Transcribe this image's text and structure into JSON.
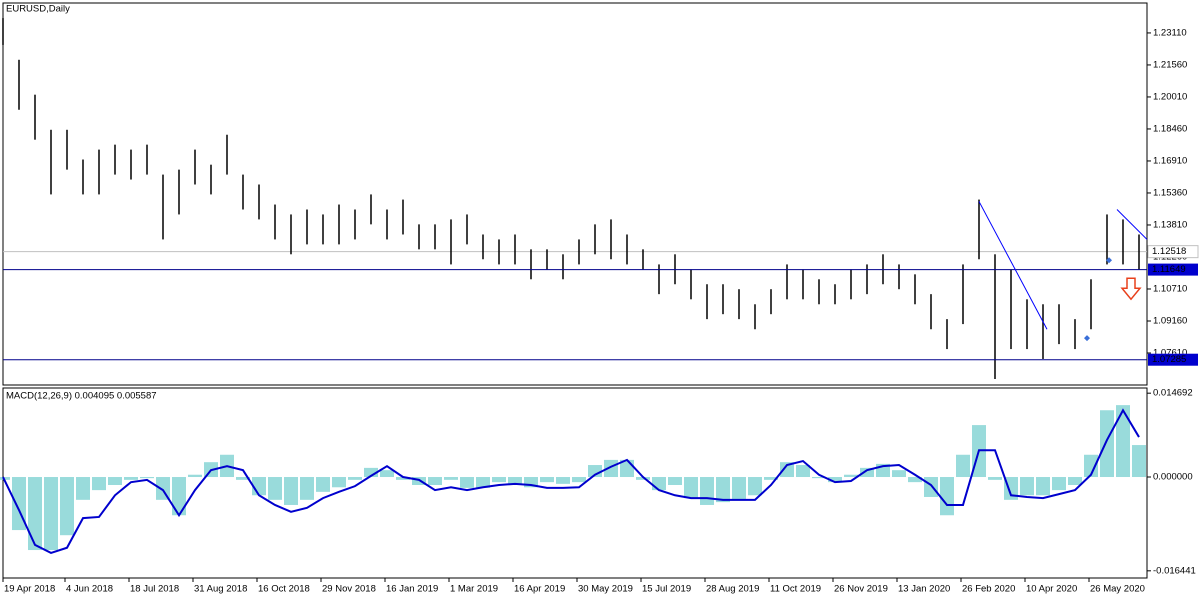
{
  "chart_data": [
    {
      "type": "hilo",
      "title": "EURUSD,Daily",
      "color": "#000000",
      "xlim": [
        0,
        572
      ],
      "x": [
        0,
        8,
        16,
        24,
        32,
        40,
        48,
        56,
        64,
        72,
        80,
        88,
        96,
        104,
        112,
        120,
        128,
        136,
        144,
        152,
        160,
        168,
        176,
        184,
        192,
        200,
        208,
        216,
        224,
        232,
        240,
        248,
        256,
        264,
        272,
        280,
        288,
        296,
        304,
        312,
        320,
        328,
        336,
        344,
        352,
        360,
        368,
        376,
        384,
        392,
        400,
        408,
        416,
        424,
        432,
        440,
        448,
        456,
        464,
        472,
        480,
        488,
        496,
        504,
        512,
        520,
        528,
        536,
        544,
        552,
        560,
        568
      ],
      "high": [
        1.2383,
        1.2181,
        1.2012,
        1.1842,
        1.1842,
        1.1698,
        1.1746,
        1.177,
        1.1746,
        1.177,
        1.1625,
        1.1649,
        1.1746,
        1.1673,
        1.1818,
        1.1625,
        1.1577,
        1.148,
        1.1432,
        1.1456,
        1.1432,
        1.148,
        1.1456,
        1.1529,
        1.1456,
        1.1504,
        1.1384,
        1.1384,
        1.1408,
        1.1432,
        1.1335,
        1.1311,
        1.1335,
        1.1263,
        1.1263,
        1.1239,
        1.1311,
        1.1384,
        1.1408,
        1.1335,
        1.1263,
        1.119,
        1.1239,
        1.1166,
        1.1094,
        1.1094,
        1.107,
        1.0997,
        1.107,
        1.119,
        1.1166,
        1.1118,
        1.1094,
        1.1166,
        1.119,
        1.1239,
        1.119,
        1.1142,
        1.1046,
        1.0925,
        1.119,
        1.1504,
        1.1239,
        1.1166,
        1.1021,
        1.0997,
        1.0997,
        1.0925,
        1.1118,
        1.1432,
        1.1408,
        1.1335
      ],
      "low": [
        1.2253,
        1.1939,
        1.1794,
        1.1529,
        1.1649,
        1.1529,
        1.1529,
        1.1625,
        1.1601,
        1.1625,
        1.1311,
        1.1432,
        1.1577,
        1.1529,
        1.1625,
        1.1456,
        1.1408,
        1.1311,
        1.1239,
        1.1287,
        1.1287,
        1.1287,
        1.1311,
        1.1384,
        1.1311,
        1.1335,
        1.1263,
        1.1263,
        1.119,
        1.1287,
        1.1215,
        1.119,
        1.119,
        1.1118,
        1.1166,
        1.1118,
        1.119,
        1.1239,
        1.1215,
        1.119,
        1.1166,
        1.1046,
        1.1094,
        1.1021,
        1.0925,
        1.0949,
        1.0925,
        1.0876,
        1.0949,
        1.1021,
        1.1021,
        1.0997,
        1.0997,
        1.1021,
        1.1046,
        1.1094,
        1.107,
        1.0997,
        1.0876,
        1.078,
        1.0901,
        1.1215,
        1.0635,
        1.078,
        1.078,
        1.0732,
        1.0804,
        1.078,
        1.0876,
        1.119,
        1.119,
        1.1166
      ],
      "ylim": [
        1.0606,
        1.2456
      ],
      "yticks": [
        {
          "value": 1.2311,
          "label": "1.23110"
        },
        {
          "value": 1.2156,
          "label": "1.21560"
        },
        {
          "value": 1.2001,
          "label": "1.20010"
        },
        {
          "value": 1.1846,
          "label": "1.18460"
        },
        {
          "value": 1.1691,
          "label": "1.16910"
        },
        {
          "value": 1.1536,
          "label": "1.15360"
        },
        {
          "value": 1.1381,
          "label": "1.13810"
        },
        {
          "value": 1.1226,
          "label": "1.12260"
        },
        {
          "value": 1.1071,
          "label": "1.10710"
        },
        {
          "value": 1.0916,
          "label": "1.09160"
        },
        {
          "value": 1.0761,
          "label": "1.07610"
        }
      ],
      "current_price": 1.12518,
      "current_color": "#c0c0c0",
      "levels": [
        1.11649,
        1.07285
      ],
      "level_color": "#00008b",
      "level_label_color": "#0000cd",
      "trendlines": [
        {
          "x": [
            488,
            522
          ],
          "y": [
            1.1495,
            1.0876
          ]
        },
        {
          "x": [
            557,
            572
          ],
          "y": [
            1.1456,
            1.1311
          ]
        }
      ],
      "trend_color": "#0000ff",
      "sell_arrows": [
        {
          "x": 564,
          "y": 1.107
        }
      ],
      "arrow_color": "#e8401c",
      "markers": [
        {
          "x": 553,
          "y": 1.121
        },
        {
          "x": 542,
          "y": 1.0833
        }
      ],
      "marker_color": "#3a6fd8"
    },
    {
      "type": "macd",
      "title": "MACD(12,26,9) 0.004095 0.005587",
      "xlim": [
        0,
        572
      ],
      "x": [
        0,
        8,
        16,
        24,
        32,
        40,
        48,
        56,
        64,
        72,
        80,
        88,
        96,
        104,
        112,
        120,
        128,
        136,
        144,
        152,
        160,
        168,
        176,
        184,
        192,
        200,
        208,
        216,
        224,
        232,
        240,
        248,
        256,
        264,
        272,
        280,
        288,
        296,
        304,
        312,
        320,
        328,
        336,
        344,
        352,
        360,
        368,
        376,
        384,
        392,
        400,
        408,
        416,
        424,
        432,
        440,
        448,
        456,
        464,
        472,
        480,
        488,
        496,
        504,
        512,
        520,
        528,
        536,
        544,
        552,
        560,
        568
      ],
      "series": [
        {
          "values": [
            -0.0005,
            -0.0093,
            -0.0128,
            -0.0128,
            -0.0102,
            -0.004,
            -0.0023,
            -0.0014,
            -0.0005,
            -0.0002,
            -0.004,
            -0.0067,
            0.0004,
            0.0026,
            0.0039,
            -0.0005,
            -0.0032,
            -0.004,
            -0.0049,
            -0.004,
            -0.0026,
            -0.0018,
            -0.0005,
            0.0016,
            0.0012,
            -0.0005,
            -0.0014,
            -0.0014,
            -0.0005,
            -0.0019,
            -0.0019,
            -0.0009,
            -0.0014,
            -0.0018,
            -0.0009,
            -0.0012,
            -0.0009,
            0.0021,
            0.003,
            0.003,
            -0.0005,
            -0.0023,
            -0.0014,
            -0.0037,
            -0.0049,
            -0.0044,
            -0.004,
            -0.0032,
            -0.0005,
            0.0026,
            0.0021,
            -0.0002,
            -0.0009,
            0.0004,
            0.0016,
            0.0023,
            0.0012,
            -0.0009,
            -0.0035,
            -0.0067,
            0.0039,
            0.0091,
            -0.0005,
            -0.004,
            -0.0032,
            -0.0032,
            -0.0023,
            -0.0014,
            0.0039,
            0.0117,
            0.0126,
            0.0056
          ],
          "color": "#7fd2d2"
        },
        {
          "values": [
            0,
            -0.0058,
            -0.0119,
            -0.0133,
            -0.0124,
            -0.0072,
            -0.007,
            -0.0032,
            -0.0009,
            -0.0005,
            -0.0023,
            -0.0067,
            -0.0023,
            0.0012,
            0.0019,
            0.0012,
            -0.0032,
            -0.0049,
            -0.0061,
            -0.0054,
            -0.0037,
            -0.0026,
            -0.0016,
            0.0002,
            0.0019,
            0,
            -0.0005,
            -0.0023,
            -0.0018,
            -0.0023,
            -0.0018,
            -0.0014,
            -0.0012,
            -0.0014,
            -0.0019,
            -0.0019,
            -0.0018,
            0.0004,
            0.0018,
            0.003,
            0,
            -0.0023,
            -0.0032,
            -0.0037,
            -0.0037,
            -0.004,
            -0.004,
            -0.004,
            -0.0014,
            0.0021,
            0.0028,
            0.0004,
            -0.0009,
            -0.0007,
            0.0012,
            0.0019,
            0.0021,
            0.0004,
            -0.0014,
            -0.0049,
            -0.0049,
            0.0047,
            0.0047,
            -0.0032,
            -0.0035,
            -0.0037,
            -0.003,
            -0.0023,
            0.0004,
            0.0065,
            0.0117,
            0.007
          ],
          "color": "#0000cd"
        }
      ],
      "ylim": [
        -0.0177,
        0.0156
      ],
      "yticks": [
        0.014692,
        {
          "value": 0,
          "label": "0.000000"
        },
        -0.016441
      ],
      "xticks": [
        {
          "value": 0,
          "label": "19 Apr 2018"
        },
        {
          "value": 31,
          "label": "4 Jun 2018"
        },
        {
          "value": 63,
          "label": "18 Jul 2018"
        },
        {
          "value": 95,
          "label": "31 Aug 2018"
        },
        {
          "value": 127,
          "label": "16 Oct 2018"
        },
        {
          "value": 159,
          "label": "29 Nov 2018"
        },
        {
          "value": 191,
          "label": "16 Jan 2019"
        },
        {
          "value": 223,
          "label": "1 Mar 2019"
        },
        {
          "value": 255,
          "label": "16 Apr 2019"
        },
        {
          "value": 287,
          "label": "30 May 2019"
        },
        {
          "value": 319,
          "label": "15 Jul 2019"
        },
        {
          "value": 351,
          "label": "28 Aug 2019"
        },
        {
          "value": 383,
          "label": "11 Oct 2019"
        },
        {
          "value": 415,
          "label": "26 Nov 2019"
        },
        {
          "value": 447,
          "label": "13 Jan 2020"
        },
        {
          "value": 479,
          "label": "26 Feb 2020"
        },
        {
          "value": 511,
          "label": "10 Apr 2020"
        },
        {
          "value": 543,
          "label": "26 May 2020"
        }
      ]
    }
  ]
}
